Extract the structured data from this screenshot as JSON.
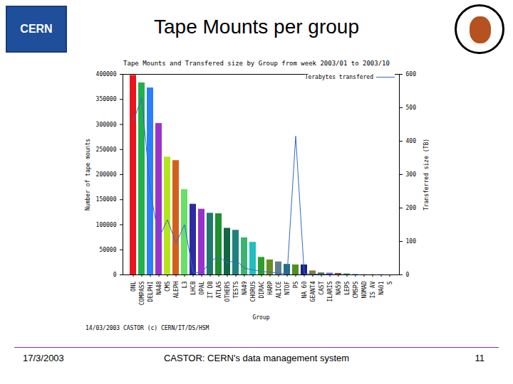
{
  "slide": {
    "title": "Tape Mounts per group",
    "logo_text": "CERN",
    "date": "17/3/2003",
    "footer": "CASTOR: CERN's data management system",
    "page": "11"
  },
  "chart_data": {
    "type": "bar",
    "title": "Tape Mounts and Transfered size by Group from week 2003/01 to 2003/10",
    "xlabel": "Group",
    "ylabel": "Number of tape mounts",
    "y2label": "Transferred size (TB)",
    "caption": "14/03/2003 CASTOR (c) CERN/IT/DS/HSM",
    "categories": [
      "ONL",
      "COMPASS",
      "DELPHI",
      "NA48",
      "CMS",
      "ALEPH",
      "L3",
      "LHCB",
      "OPAL",
      "IT DB",
      "ATLAS",
      "OTHERS",
      "TESTS",
      "NA49",
      "CHORUS",
      "DIRAC",
      "HARP",
      "ALICE",
      "NTOF",
      "PS",
      "NA 60",
      "GEANT4",
      "CAST",
      "ILARIS",
      "NA59",
      "LEPS",
      "CMSPS",
      "NOMAD",
      "IS AV",
      "NA01",
      "S"
    ],
    "values": [
      398000,
      383000,
      373000,
      302000,
      235000,
      228000,
      170000,
      141000,
      131000,
      123000,
      122000,
      93000,
      89000,
      74000,
      65000,
      35000,
      30000,
      26000,
      21000,
      20000,
      20000,
      8000,
      4000,
      3500,
      3000,
      2000,
      1000,
      500,
      300,
      200,
      100
    ],
    "colors": [
      "#e8161b",
      "#22b14c",
      "#2a7fff",
      "#9933cc",
      "#b5e61d",
      "#d2601a",
      "#66e066",
      "#2c2ca0",
      "#9932cc",
      "#1f7a6a",
      "#1f8f2f",
      "#116644",
      "#1f8080",
      "#3cb371",
      "#20c0c0",
      "#2ca02c",
      "#6b8e23",
      "#5f7f8f",
      "#1f6f7f",
      "#4f8f1f",
      "#1a237e",
      "#8b7d3a",
      "#556b2f",
      "#6a5acd",
      "#8b4513",
      "#2e8b57",
      "#4682b4",
      "#708090",
      "#228b22",
      "#483d8b",
      "#2f4f4f"
    ],
    "series": [
      {
        "name": "Terabytes transfered",
        "type": "line",
        "axis": "y2",
        "color": "#3366cc",
        "values": [
          460,
          530,
          250,
          110,
          165,
          95,
          150,
          8,
          5,
          40,
          55,
          35,
          45,
          20,
          15,
          10,
          8,
          5,
          3,
          415,
          4,
          2,
          2,
          1,
          1,
          0,
          0,
          0,
          0,
          0,
          0
        ]
      }
    ],
    "ylim": [
      0,
      400000
    ],
    "yticks": [
      0,
      50000,
      100000,
      150000,
      200000,
      250000,
      300000,
      350000,
      400000
    ],
    "y2lim": [
      0,
      600
    ],
    "y2ticks": [
      0,
      100,
      200,
      300,
      400,
      500,
      600
    ],
    "legend": "top-right",
    "grid": false
  }
}
